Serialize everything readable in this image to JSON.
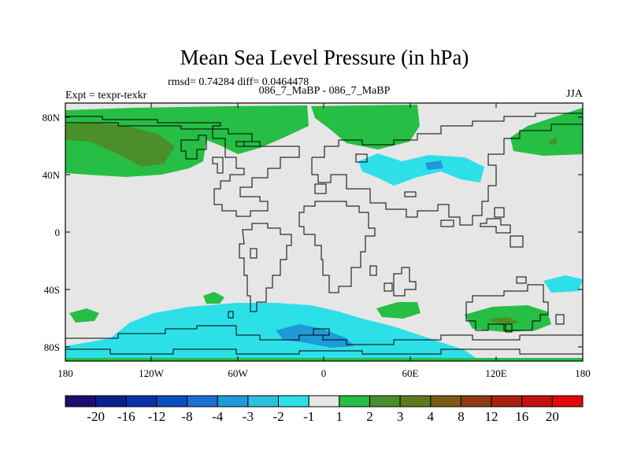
{
  "chart_data": {
    "type": "map-contour",
    "title": "Mean Sea Level Pressure (in hPa)",
    "stats": "rmsd= 0.74284 diff= 0.0464478",
    "left_label": "Expt = texpr-texkr",
    "center_label": "086_7_MaBP - 086_7_MaBP",
    "right_label": "JJA",
    "x_ticks": [
      "180",
      "120W",
      "60W",
      "0",
      "60E",
      "120E",
      "180"
    ],
    "y_ticks": [
      "80N",
      "40N",
      "0",
      "40S",
      "80S"
    ],
    "colorbar": {
      "levels": [
        "-20",
        "-16",
        "-12",
        "-8",
        "-4",
        "-3",
        "-2",
        "-1",
        "1",
        "2",
        "3",
        "4",
        "8",
        "12",
        "16",
        "20"
      ],
      "colors": [
        "#1a0f6e",
        "#0d1f8f",
        "#0b33a8",
        "#0a4fc0",
        "#1a6fd0",
        "#1f9ad8",
        "#2cc0e0",
        "#2de0e8",
        "#e6e6e6",
        "#26be45",
        "#4a8f2a",
        "#5f7a1a",
        "#7b5a14",
        "#8f3a10",
        "#a82010",
        "#c41010",
        "#e00808"
      ]
    }
  }
}
